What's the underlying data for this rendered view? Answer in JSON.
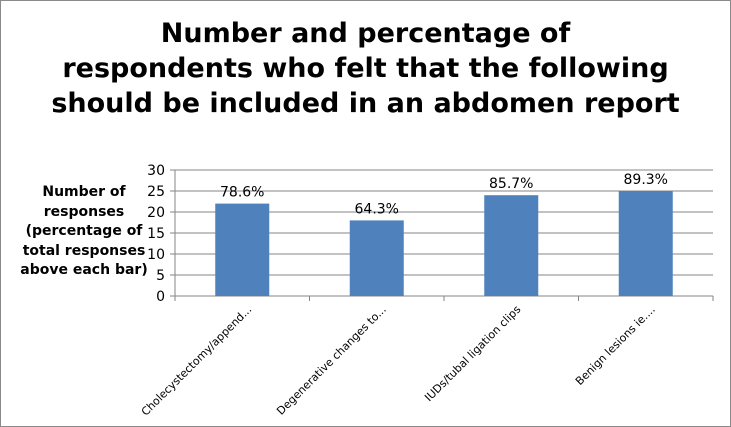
{
  "chart_data": {
    "type": "bar",
    "title_lines": [
      "Number and percentage of",
      "respondents who felt that the following",
      "should be included in an abdomen report"
    ],
    "ylabel_lines": [
      "Number of",
      "responses",
      "(percentage of",
      "total responses",
      "above each bar)"
    ],
    "categories": [
      "Cholecystectomy/append...",
      "Degenerative changes to...",
      "IUDs/tubal ligation clips",
      "Benign lesions ie...."
    ],
    "values": [
      22,
      18,
      24,
      25
    ],
    "data_labels": [
      "78.6%",
      "64.3%",
      "85.7%",
      "89.3%"
    ],
    "ylim": [
      0,
      30
    ],
    "yticks": [
      "0",
      "5",
      "10",
      "15",
      "20",
      "25",
      "30"
    ],
    "grid": true,
    "legend": "none",
    "bar_color": "#4f81bd",
    "grid_color": "#868686"
  }
}
